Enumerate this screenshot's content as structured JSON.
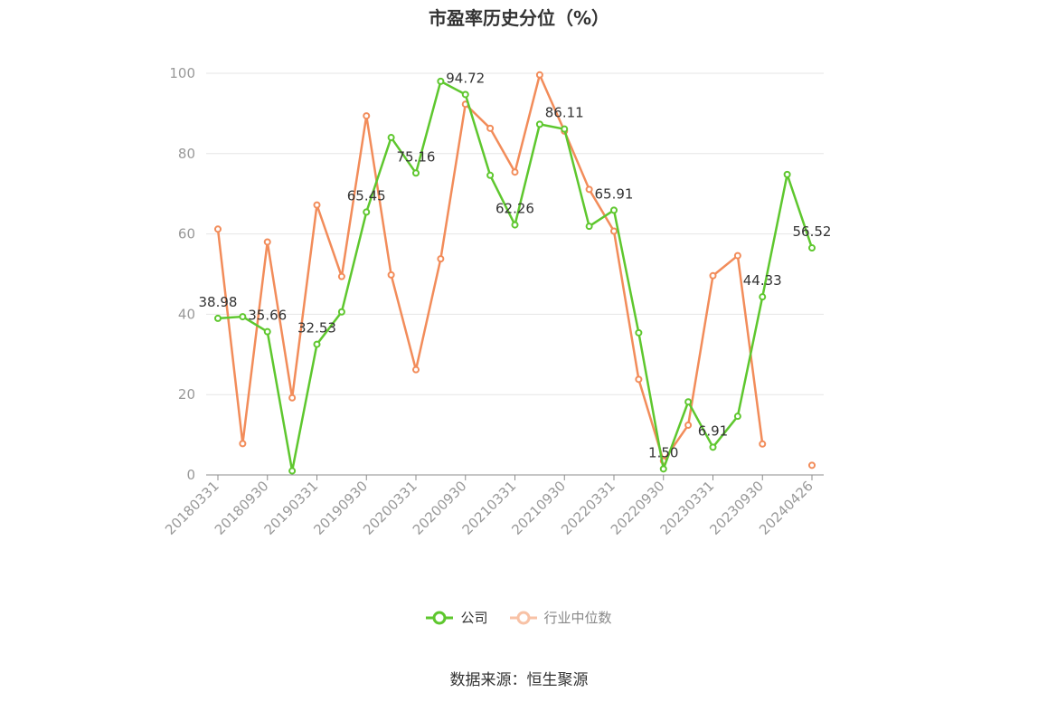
{
  "chart_data": {
    "type": "line",
    "title": "市盈率历史分位（%）",
    "xlabel": "",
    "ylabel": "",
    "ylim": [
      0,
      100
    ],
    "yticks": [
      0,
      20,
      40,
      60,
      80,
      100
    ],
    "x_tick_labels": [
      "20180331",
      "20180930",
      "20190331",
      "20190930",
      "20200331",
      "20200930",
      "20210331",
      "20210930",
      "20220331",
      "20220930",
      "20230331",
      "20230930",
      "20240426"
    ],
    "x": [
      "20180331",
      "20180630",
      "20180930",
      "20181231",
      "20190331",
      "20190630",
      "20190930",
      "20191231",
      "20200331",
      "20200630",
      "20200930",
      "20201231",
      "20210331",
      "20210630",
      "20210930",
      "20211231",
      "20220331",
      "20220630",
      "20220930",
      "20221231",
      "20230331",
      "20230630",
      "20230930",
      "20231231",
      "20240426"
    ],
    "series": [
      {
        "name": "公司",
        "color": "#5ec72e",
        "values": [
          38.98,
          39.4,
          35.66,
          1.0,
          32.53,
          40.6,
          65.45,
          84.0,
          75.16,
          98.0,
          94.72,
          74.6,
          62.26,
          87.3,
          86.11,
          61.9,
          65.91,
          35.4,
          1.5,
          18.2,
          6.91,
          14.6,
          44.33,
          74.8,
          56.52
        ],
        "labels": [
          "38.98",
          "",
          "35.66",
          "",
          "32.53",
          "",
          "65.45",
          "",
          "75.16",
          "",
          "94.72",
          "",
          "62.26",
          "",
          "86.11",
          "",
          "65.91",
          "",
          "1.50",
          "",
          "6.91",
          "",
          "44.33",
          "",
          "56.52"
        ]
      },
      {
        "name": "行业中位数",
        "color": "#f28c5a",
        "values": [
          61.2,
          7.8,
          58.0,
          19.2,
          67.2,
          49.4,
          89.4,
          49.8,
          26.2,
          53.8,
          92.3,
          86.3,
          75.4,
          99.6,
          85.6,
          71.1,
          60.7,
          23.8,
          3.5,
          12.4,
          49.6,
          54.6,
          7.7,
          null,
          2.4
        ]
      }
    ],
    "legend_position": "bottom-center",
    "grid": true,
    "source_note": "数据来源：恒生聚源"
  }
}
